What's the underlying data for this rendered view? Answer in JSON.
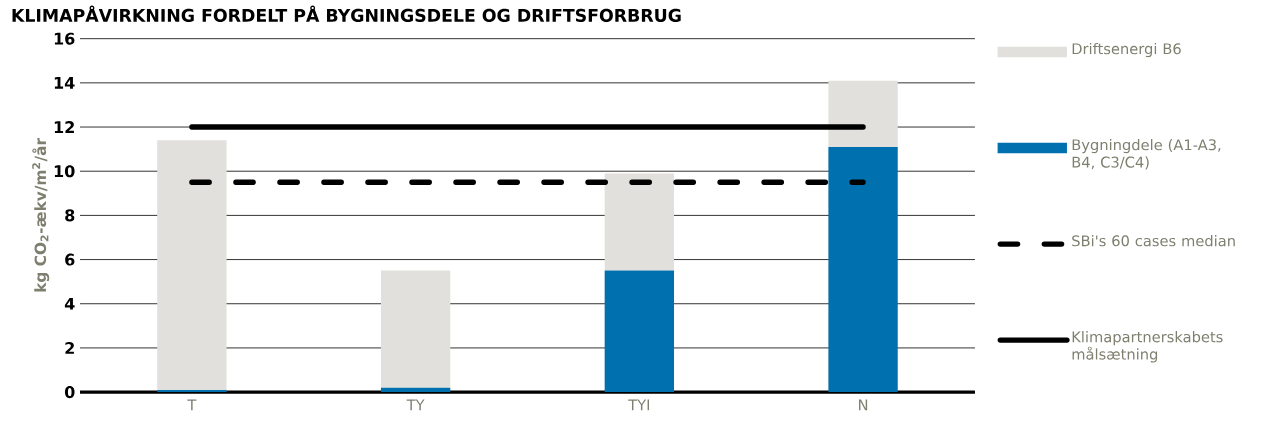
{
  "chart_data": {
    "type": "bar",
    "title": "KLIMAPÅVIRKNING FORDELT PÅ BYGNINGSDELE OG DRIFTSFORBRUG",
    "ylabel": "kg CO$_{2}$-ækv/m$^{2}$/år",
    "categories": [
      "T",
      "TY",
      "TYI",
      "N"
    ],
    "stacked": true,
    "grid": "y",
    "legend": "right",
    "ylim": [
      0,
      16
    ],
    "yticks": [
      0,
      2,
      4,
      6,
      8,
      10,
      12,
      14,
      16
    ],
    "series": [
      {
        "name": "Bygningdele (A1-A3, B4, C3/C4)",
        "color": "#0070ae",
        "values": [
          0.1,
          0.2,
          5.5,
          11.1
        ]
      },
      {
        "name": "Driftsenergi B6",
        "color": "#e1e0dc",
        "values": [
          11.3,
          5.3,
          4.4,
          3.0
        ]
      },
      {
        "name": "SBi's 60 cases median",
        "type": "line",
        "line_style": "dashed",
        "color": "#000000",
        "values": [
          9.5,
          9.5,
          9.5,
          9.5
        ]
      },
      {
        "name": "Klimapartnerskabets målsætning",
        "type": "line",
        "line_style": "solid",
        "color": "#000000",
        "values": [
          12,
          12,
          12,
          12
        ]
      }
    ]
  }
}
